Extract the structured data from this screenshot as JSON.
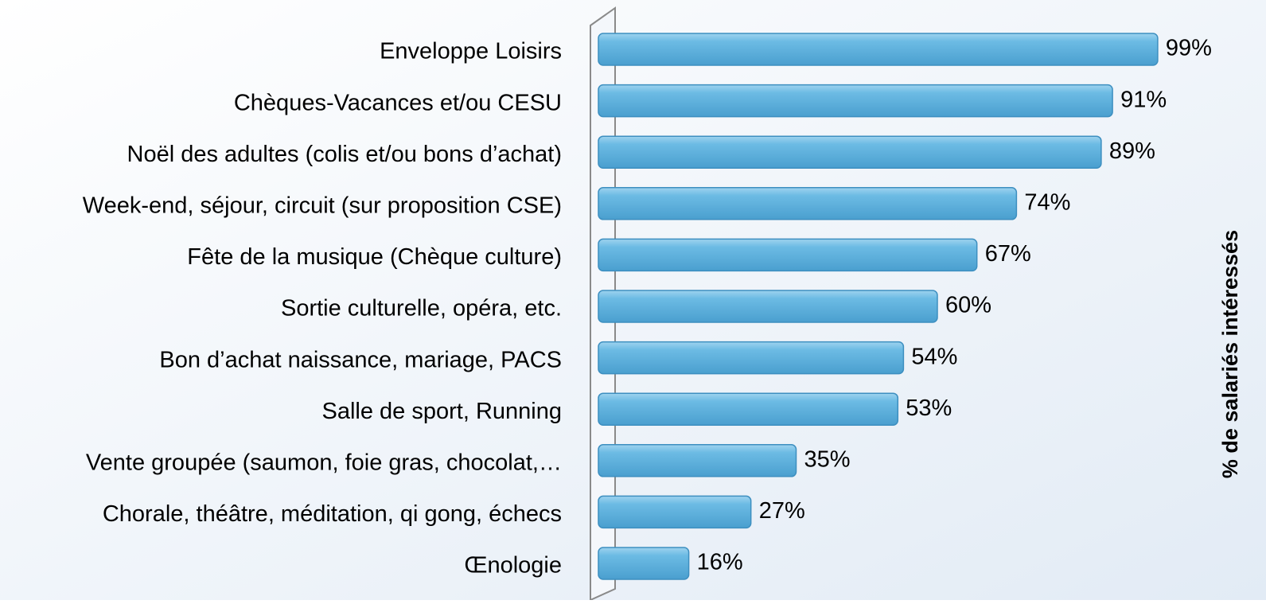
{
  "chart_data": {
    "type": "bar",
    "orientation": "horizontal",
    "axis_label": "% de salariés intéressés",
    "categories": [
      "Enveloppe Loisirs",
      "Chèques-Vacances et/ou CESU",
      "Noël des adultes (colis et/ou bons d’achat)",
      "Week-end, séjour, circuit (sur proposition CSE)",
      "Fête de la musique (Chèque culture)",
      "Sortie culturelle, opéra, etc.",
      "Bon d’achat naissance, mariage, PACS",
      "Salle de sport, Running",
      "Vente groupée (saumon, foie gras, chocolat,…",
      "Chorale, théâtre, méditation, qi gong, échecs",
      "Œnologie"
    ],
    "values": [
      99,
      91,
      89,
      74,
      67,
      60,
      54,
      53,
      35,
      27,
      16
    ],
    "value_labels": [
      "99%",
      "91%",
      "89%",
      "74%",
      "67%",
      "60%",
      "54%",
      "53%",
      "35%",
      "27%",
      "16%"
    ],
    "color": "#62b4e0",
    "xlim": [
      0,
      100
    ]
  }
}
